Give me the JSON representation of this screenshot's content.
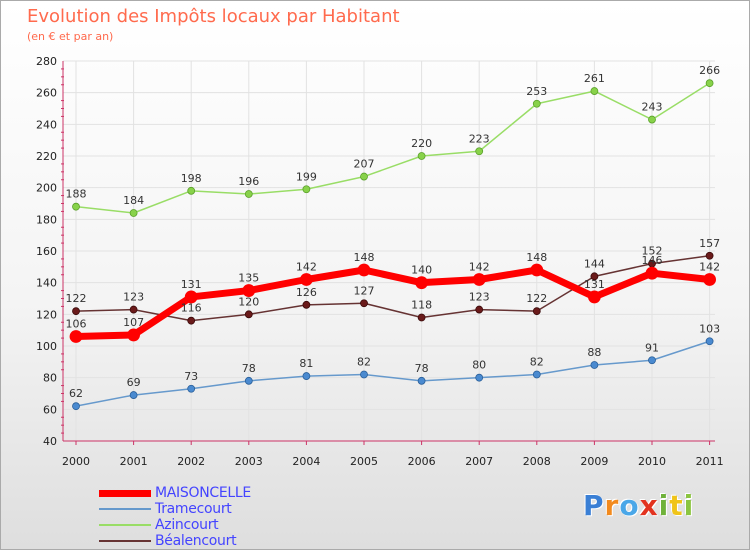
{
  "header": {
    "title": "Evolution des Impôts locaux par Habitant",
    "subtitle": "(en € et par an)"
  },
  "logo": {
    "text": "Proxiti",
    "letter_colors": [
      "#3a7fd5",
      "#f28a1e",
      "#4aa7e8",
      "#e2331f",
      "#6fb23a",
      "#f0c419",
      "#8bc540"
    ]
  },
  "chart_data": {
    "type": "line",
    "title": "Evolution des Impôts locaux par Habitant",
    "subtitle": "(en € et par an)",
    "xlabel": "",
    "ylabel": "",
    "x": [
      "2000",
      "2001",
      "2002",
      "2003",
      "2004",
      "2005",
      "2006",
      "2007",
      "2008",
      "2009",
      "2010",
      "2011"
    ],
    "ylim": [
      40,
      280
    ],
    "yticks": [
      40,
      60,
      80,
      100,
      120,
      140,
      160,
      180,
      200,
      220,
      240,
      260,
      280
    ],
    "grid": true,
    "legend_position": "bottom-left",
    "series": [
      {
        "name": "MAISONCELLE",
        "values": [
          106,
          107,
          131,
          135,
          142,
          148,
          140,
          142,
          148,
          131,
          146,
          142
        ],
        "labels": [
          "106",
          "107",
          "131",
          "135",
          "142",
          "148",
          "140",
          "142",
          "148",
          "131",
          "146",
          "142"
        ],
        "color": "#ff0000",
        "legend_color": "#4444ff"
      },
      {
        "name": "Tramecourt",
        "values": [
          62,
          69,
          73,
          78,
          81,
          82,
          78,
          80,
          82,
          88,
          91,
          103
        ],
        "labels": [
          "62",
          "69",
          "73",
          "78",
          "81",
          "82",
          "78",
          "80",
          "82",
          "88",
          "91",
          "103"
        ],
        "color": "#6699cc",
        "legend_color": "#4444ff"
      },
      {
        "name": "Azincourt",
        "values": [
          188,
          184,
          198,
          196,
          199,
          207,
          220,
          223,
          253,
          261,
          243,
          266
        ],
        "labels": [
          "188",
          "184",
          "198",
          "196",
          "199",
          "207",
          "220",
          "223",
          "253",
          "261",
          "243",
          "266"
        ],
        "color": "#99dd66",
        "legend_color": "#4444ff"
      },
      {
        "name": "Béalencourt",
        "values": [
          122,
          123,
          116,
          120,
          126,
          127,
          118,
          123,
          122,
          144,
          152,
          157
        ],
        "labels": [
          "122",
          "123",
          "116",
          "120",
          "126",
          "127",
          "118",
          "123",
          "122",
          "144",
          "152",
          "157"
        ],
        "color": "#663333",
        "legend_color": "#4444ff"
      }
    ]
  }
}
